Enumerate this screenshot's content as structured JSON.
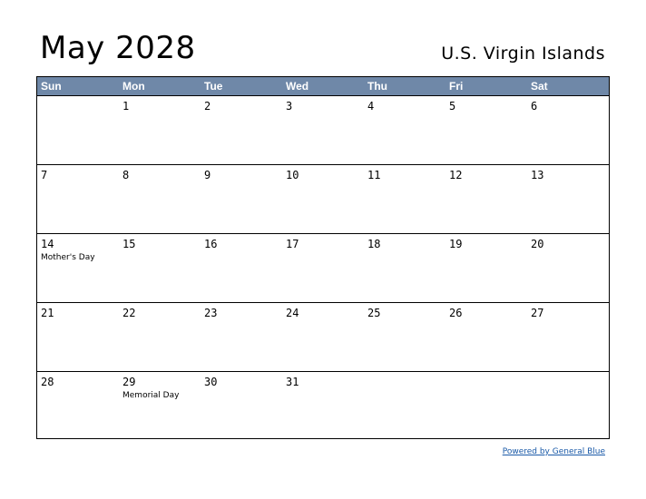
{
  "title": "May 2028",
  "region": "U.S. Virgin Islands",
  "weekdays": [
    "Sun",
    "Mon",
    "Tue",
    "Wed",
    "Thu",
    "Fri",
    "Sat"
  ],
  "weeks": [
    [
      {
        "day": ""
      },
      {
        "day": "1"
      },
      {
        "day": "2"
      },
      {
        "day": "3"
      },
      {
        "day": "4"
      },
      {
        "day": "5"
      },
      {
        "day": "6"
      }
    ],
    [
      {
        "day": "7"
      },
      {
        "day": "8"
      },
      {
        "day": "9"
      },
      {
        "day": "10"
      },
      {
        "day": "11"
      },
      {
        "day": "12"
      },
      {
        "day": "13"
      }
    ],
    [
      {
        "day": "14",
        "holiday": "Mother's Day"
      },
      {
        "day": "15"
      },
      {
        "day": "16"
      },
      {
        "day": "17"
      },
      {
        "day": "18"
      },
      {
        "day": "19"
      },
      {
        "day": "20"
      }
    ],
    [
      {
        "day": "21"
      },
      {
        "day": "22"
      },
      {
        "day": "23"
      },
      {
        "day": "24"
      },
      {
        "day": "25"
      },
      {
        "day": "26"
      },
      {
        "day": "27"
      }
    ],
    [
      {
        "day": "28"
      },
      {
        "day": "29",
        "holiday": "Memorial Day"
      },
      {
        "day": "30"
      },
      {
        "day": "31"
      },
      {
        "day": ""
      },
      {
        "day": ""
      },
      {
        "day": ""
      }
    ]
  ],
  "footer": {
    "powered_by": "Powered by General Blue"
  },
  "colors": {
    "header_bg": "#6f88a8",
    "link": "#1a5aa8"
  }
}
